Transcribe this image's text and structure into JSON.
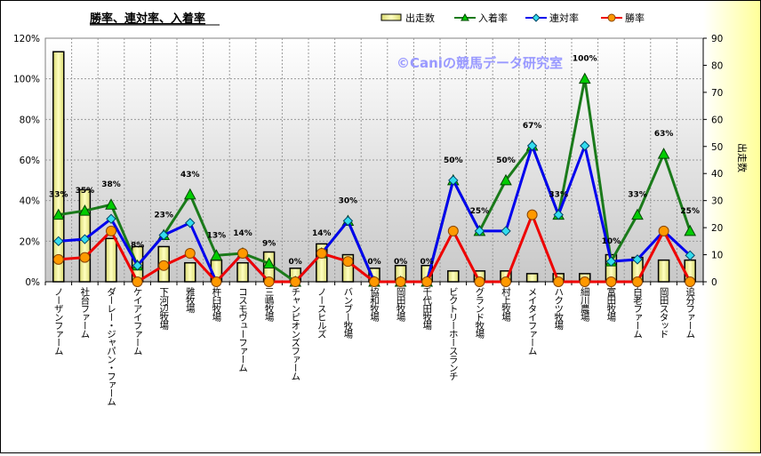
{
  "chart_data": {
    "type": "bar+line",
    "title": "勝率、連対率、入着率",
    "watermark": "©Caniの競馬データ研究室",
    "y_left": {
      "min": 0,
      "max": 120,
      "step": 20,
      "suffix": "%"
    },
    "y_right": {
      "label": "出走数",
      "min": 0,
      "max": 90,
      "step": 10
    },
    "legend_position": "top-right",
    "categories": [
      "ノーザンファーム",
      "社台ファーム",
      "ダーレー・ジャパン・ファーム",
      "ケイアイファーム",
      "下河辺牧場",
      "雅牧場",
      "杵臼牧場",
      "コスモヴューファーム",
      "三嶋牧場",
      "チャンピオンズファーム",
      "ノースヒルズ",
      "バンブー牧場",
      "協和牧場",
      "岡田牧場",
      "千代田牧場",
      "ビクトリーホースランチ",
      "グランド牧場",
      "村上牧場",
      "メイタイファーム",
      "ハクツ牧場",
      "細川農場",
      "富田牧場",
      "白老ファーム",
      "岡田スタッド",
      "追分ファーム"
    ],
    "series": [
      {
        "name": "出走数",
        "type": "bar",
        "axis": "right",
        "color": "#f0f090",
        "values": [
          85,
          34,
          16,
          13,
          13,
          7,
          8,
          7,
          11,
          5,
          14,
          10,
          5,
          6,
          6,
          4,
          4,
          4,
          3,
          3,
          3,
          10,
          9,
          8,
          8
        ]
      },
      {
        "name": "入着率",
        "type": "line",
        "axis": "left",
        "color": "#1a7a1a",
        "marker": "triangle",
        "marker_color": "#00cc00",
        "values": [
          33,
          35,
          38,
          8,
          23,
          43,
          13,
          14,
          9,
          0,
          14,
          30,
          0,
          0,
          0,
          50,
          25,
          50,
          67,
          33,
          100,
          10,
          33,
          63,
          25
        ],
        "labels": [
          "33%",
          "35%",
          "38%",
          "8%",
          "23%",
          "43%",
          "13%",
          "14%",
          "9%",
          "0%",
          "14%",
          "30%",
          "0%",
          "0%",
          "0%",
          "50%",
          "25%",
          "50%",
          "67%",
          "33%",
          "100%",
          "10%",
          "33%",
          "63%",
          "25%"
        ]
      },
      {
        "name": "連対率",
        "type": "line",
        "axis": "left",
        "color": "#0000ee",
        "marker": "diamond",
        "marker_color": "#33ddee",
        "values": [
          20,
          21,
          31,
          8,
          23,
          29,
          0,
          14,
          0,
          0,
          14,
          30,
          0,
          0,
          0,
          50,
          25,
          25,
          67,
          33,
          67,
          10,
          11,
          25,
          13
        ]
      },
      {
        "name": "勝率",
        "type": "line",
        "axis": "left",
        "color": "#ee0000",
        "marker": "circle",
        "marker_color": "#ff9900",
        "values": [
          11,
          12,
          25,
          0,
          8,
          14,
          0,
          14,
          0,
          0,
          14,
          10,
          0,
          0,
          0,
          25,
          0,
          0,
          33,
          0,
          0,
          0,
          0,
          25,
          0
        ]
      }
    ]
  }
}
